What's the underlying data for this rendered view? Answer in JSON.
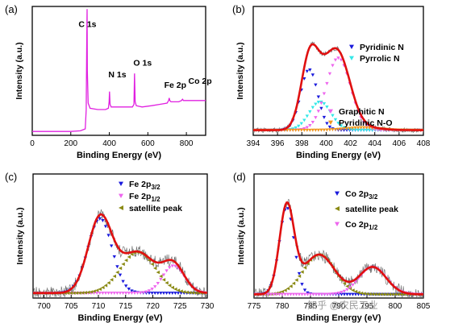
{
  "chart_data": [
    {
      "panel_label": "(a)",
      "type": "line",
      "xlabel": "Binding Energy (eV)",
      "ylabel": "Intensity (a.u.)",
      "xlim": [
        0,
        900
      ],
      "xticks": [
        0,
        200,
        400,
        600,
        800
      ],
      "ylim": [
        0,
        100
      ],
      "grid": false,
      "series": [
        {
          "color": "#e020e0",
          "style": "line",
          "x": [
            0,
            100,
            200,
            250,
            275,
            280,
            283,
            284.5,
            286,
            290,
            300,
            340,
            380,
            395,
            399,
            401,
            404,
            410,
            450,
            500,
            520,
            528,
            531,
            534,
            540,
            570,
            620,
            660,
            700,
            708,
            711,
            714,
            720,
            760,
            775,
            780,
            785,
            800,
            850,
            900
          ],
          "y": [
            3,
            3,
            3,
            3.5,
            5,
            20,
            75,
            98,
            50,
            25,
            21,
            20,
            20,
            21,
            26,
            34,
            24,
            22,
            22,
            22,
            22,
            24,
            48,
            26,
            23,
            22,
            23,
            24,
            25,
            27,
            29,
            27,
            26,
            26,
            27,
            28,
            27,
            27,
            27,
            27
          ]
        }
      ],
      "annotations": [
        {
          "text": "C 1s",
          "x": 240,
          "y": 84
        },
        {
          "text": "N 1s",
          "x": 395,
          "y": 45
        },
        {
          "text": "O 1s",
          "x": 525,
          "y": 54
        },
        {
          "text": "Fe 2p",
          "x": 685,
          "y": 37
        },
        {
          "text": "Co 2p",
          "x": 810,
          "y": 40
        }
      ]
    },
    {
      "panel_label": "(b)",
      "type": "line",
      "xlabel": "Binding Energy (eV)",
      "ylabel": "Intensity (a.u.)",
      "xlim": [
        394,
        408
      ],
      "xticks": [
        394,
        396,
        398,
        400,
        402,
        404,
        406,
        408
      ],
      "ylim": [
        0,
        100
      ],
      "grid": false,
      "series": [
        {
          "name": "Pyridinic N",
          "color": "#1a1adc",
          "style": "markers",
          "marker": "down-triangle",
          "peak": {
            "center": 398.6,
            "height": 47,
            "width": 0.7,
            "baseline": 4
          }
        },
        {
          "name": "Pyrrolic N",
          "color": "#33e8e8",
          "style": "markers",
          "marker": "down-triangle",
          "peak": {
            "center": 399.5,
            "height": 22,
            "width": 0.9,
            "baseline": 4
          }
        },
        {
          "name": "Graphitic N",
          "color": "#ee66ee",
          "style": "markers",
          "marker": "down-triangle",
          "peak": {
            "center": 401.0,
            "height": 56,
            "width": 1.0,
            "baseline": 4
          }
        },
        {
          "name": "Pyridinic N-O",
          "color": "#f0961e",
          "style": "markers",
          "marker": "down-triangle",
          "peak": {
            "center": 403.0,
            "height": 2,
            "width": 1.4,
            "baseline": 4
          }
        },
        {
          "color": "#e01010",
          "style": "envelope"
        },
        {
          "color": "#666666",
          "style": "raw-noisy"
        }
      ]
    },
    {
      "panel_label": "(c)",
      "type": "line",
      "xlabel": "Binding Energy (eV)",
      "ylabel": "Intensity (a.u.)",
      "xlim": [
        698,
        730
      ],
      "xticks": [
        700,
        705,
        710,
        715,
        720,
        725,
        730
      ],
      "ylim": [
        0,
        100
      ],
      "grid": false,
      "series": [
        {
          "name": "Fe 2p3/2",
          "color": "#1a1adc",
          "style": "markers",
          "marker": "down-triangle",
          "peak": {
            "center": 710.3,
            "height": 60,
            "width": 2.2,
            "baseline": 4
          }
        },
        {
          "name": "Fe 2p1/2",
          "color": "#ee66ee",
          "style": "markers",
          "marker": "down-triangle",
          "peak": {
            "center": 723.8,
            "height": 22,
            "width": 2.0,
            "baseline": 4
          }
        },
        {
          "name": "satellite peak",
          "color": "#8a8a14",
          "style": "markers",
          "marker": "left-triangle",
          "peak": {
            "center": 717.2,
            "height": 33,
            "width": 3.2,
            "baseline": 4
          }
        },
        {
          "color": "#e01010",
          "style": "envelope"
        },
        {
          "color": "#666666",
          "style": "raw-noisy"
        }
      ]
    },
    {
      "panel_label": "(d)",
      "type": "line",
      "xlabel": "Binding Energy (eV)",
      "ylabel": "Intensity (a.u.)",
      "xlim": [
        775,
        805
      ],
      "xticks": [
        775,
        780,
        785,
        790,
        795,
        800,
        805
      ],
      "ylim": [
        0,
        100
      ],
      "grid": false,
      "series": [
        {
          "name": "Co 2p3/2",
          "color": "#1a1adc",
          "style": "markers",
          "marker": "down-triangle",
          "peak": {
            "center": 780.8,
            "height": 70,
            "width": 1.3,
            "baseline": 3
          }
        },
        {
          "name": "satellite peak",
          "color": "#8a8a14",
          "style": "markers",
          "marker": "left-triangle",
          "peak": {
            "center": 786.5,
            "height": 32,
            "width": 2.8,
            "baseline": 3
          }
        },
        {
          "name": "Co 2p1/2",
          "color": "#ee66ee",
          "style": "markers",
          "marker": "down-triangle",
          "peak": {
            "center": 796.0,
            "height": 22,
            "width": 2.4,
            "baseline": 3
          }
        },
        {
          "color": "#e01010",
          "style": "envelope"
        },
        {
          "color": "#666666",
          "style": "raw-noisy"
        }
      ],
      "watermark_text": "知乎 @农民工业"
    }
  ]
}
